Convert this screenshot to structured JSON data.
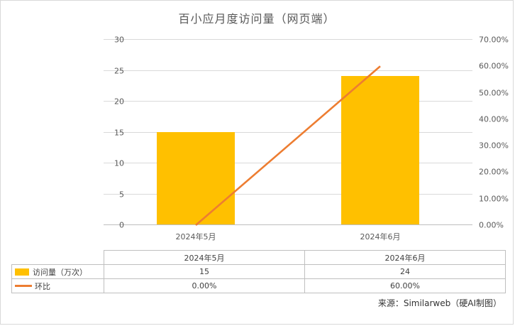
{
  "chart_data": {
    "type": "combo: bar + line",
    "title": "百小应月度访问量（网页端）",
    "categories": [
      "2024年5月",
      "2024年6月"
    ],
    "series": [
      {
        "name": "访问量（万次）",
        "type": "bar",
        "axis": "left",
        "values": [
          15,
          24
        ],
        "labels": [
          "15",
          "24"
        ],
        "color": "#FFC000"
      },
      {
        "name": "环比",
        "type": "line",
        "axis": "right",
        "values": [
          0,
          60
        ],
        "labels": [
          "0.00%",
          "60.00%"
        ],
        "color": "#ED7D31"
      }
    ],
    "left_axis": {
      "min": 0,
      "max": 30,
      "ticks": [
        "0",
        "5",
        "10",
        "15",
        "20",
        "25",
        "30"
      ]
    },
    "right_axis": {
      "min": 0,
      "max": 70,
      "ticks": [
        "0.00%",
        "10.00%",
        "20.00%",
        "30.00%",
        "40.00%",
        "50.00%",
        "60.00%",
        "70.00%"
      ]
    },
    "grid": "horizontal",
    "legend_position": "data-table-left"
  },
  "table": {
    "corner": "",
    "headers": [
      "2024年5月",
      "2024年6月"
    ],
    "rows": [
      {
        "label": "访问量（万次）",
        "values": [
          "15",
          "24"
        ]
      },
      {
        "label": "环比",
        "values": [
          "0.00%",
          "60.00%"
        ]
      }
    ]
  },
  "source_note": "来源：Similarweb（硬AI制图）",
  "colors": {
    "bar": "#FFC000",
    "line": "#ED7D31",
    "grid": "#D9D9D9",
    "axis_text": "#595959"
  }
}
